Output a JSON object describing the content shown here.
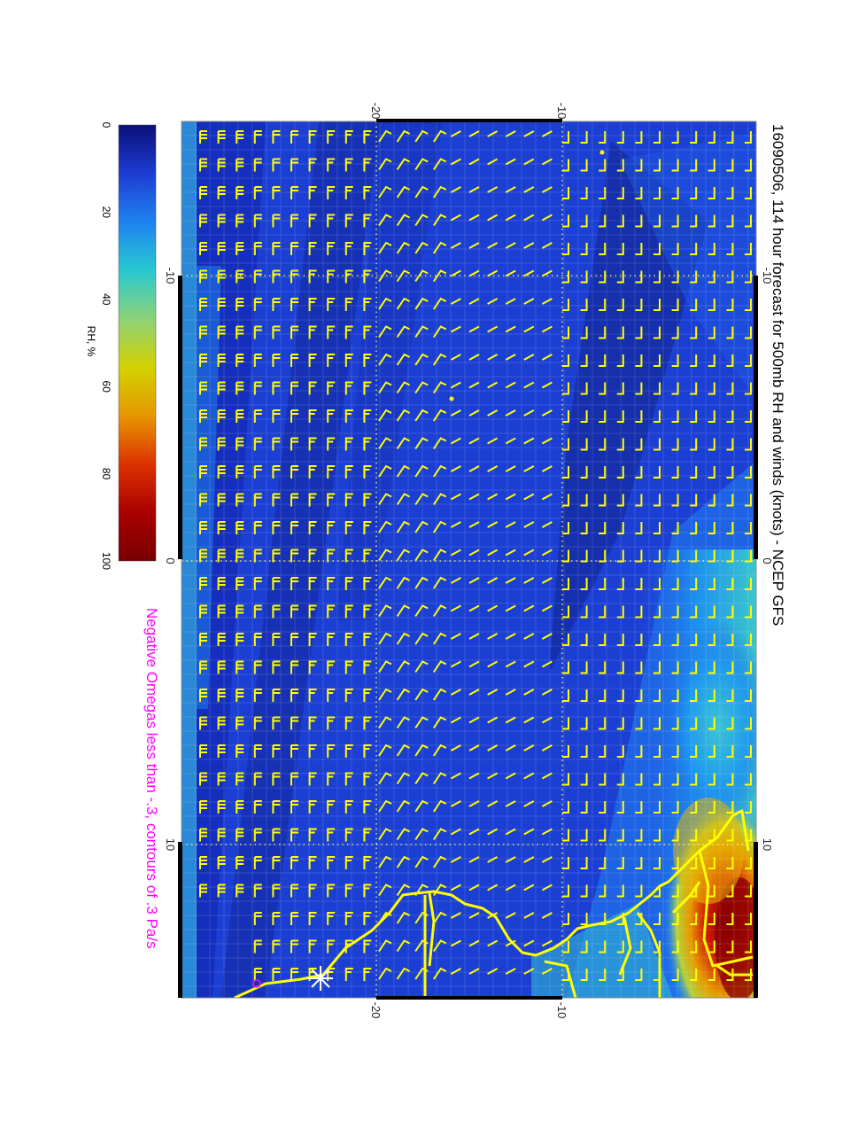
{
  "title": "16090506, 114 hour forecast for 500mb RH and winds (knots) - NCEP GFS",
  "subtitle": "Negative Omegas less than -.3, contours of .3 Pa/s",
  "colors": {
    "title": "#000000",
    "subtitle": "#ff00ff",
    "wind_barb": "#ffff00",
    "coastline": "#ffff00",
    "grid": "#ffff66",
    "frame": "#000000"
  },
  "colorbar": {
    "label": "RH, %",
    "ticks": [
      "0",
      "20",
      "40",
      "60",
      "80",
      "100"
    ],
    "stops": [
      "#0a0f78",
      "#1e3cd2",
      "#1e82f0",
      "#28c8d2",
      "#8cd278",
      "#d2d200",
      "#e69600",
      "#dc3200",
      "#aa0000",
      "#780000"
    ]
  },
  "map": {
    "top_axis_labels": [
      "-20",
      "-10"
    ],
    "bottom_axis_labels": [
      "-20",
      "-10"
    ],
    "left_axis_labels": [
      "-10",
      "0",
      "10"
    ],
    "right_axis_labels": [
      "-10",
      "0",
      "10"
    ]
  }
}
